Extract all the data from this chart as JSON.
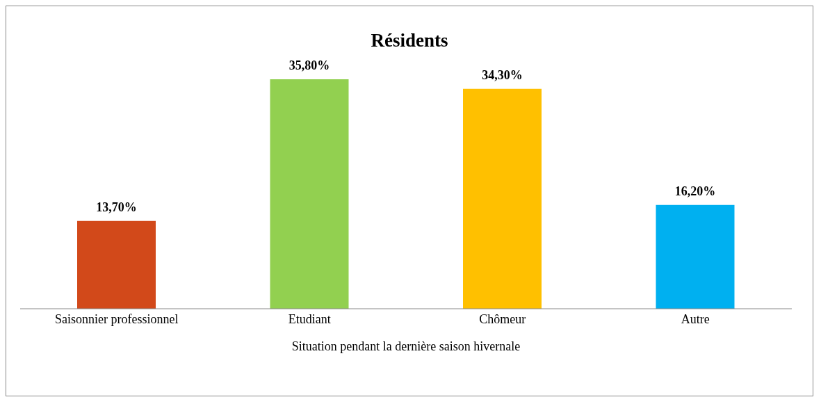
{
  "chart_data": {
    "type": "bar",
    "title": "Résidents",
    "xlabel": "Situation pendant la dernière saison hivernale",
    "categories": [
      "Saisonnier professionnel",
      "Etudiant",
      "Chômeur",
      "Autre"
    ],
    "values": [
      13.7,
      35.8,
      34.3,
      16.2
    ],
    "colors": [
      "#d2491a",
      "#92d050",
      "#ffc000",
      "#00b0f0"
    ],
    "value_labels": [
      "13,70%",
      "35,80%",
      "34,30%",
      "16,20%"
    ],
    "grid": false,
    "legend": false
  }
}
